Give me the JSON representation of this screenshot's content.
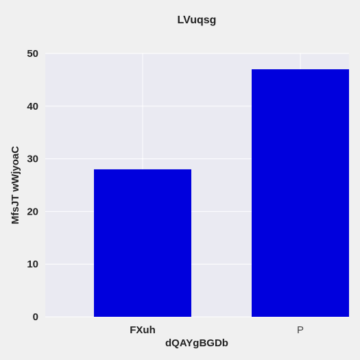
{
  "chart_data": {
    "type": "bar",
    "title": "LVuqsg",
    "xlabel": "dQAYgBGDb",
    "ylabel": "MfsJT wWjyoaC",
    "categories": [
      "FXuh",
      "P"
    ],
    "values": [
      28,
      47
    ],
    "ylim": [
      0,
      50
    ],
    "yticks": [
      0,
      10,
      20,
      30,
      40,
      50
    ],
    "grid": true,
    "legend": "none",
    "colors": {
      "bar": "#0000dd",
      "plot_background": "#eaeaf2",
      "grid": "#ffffff",
      "page_background": "#f0f0f0"
    }
  }
}
